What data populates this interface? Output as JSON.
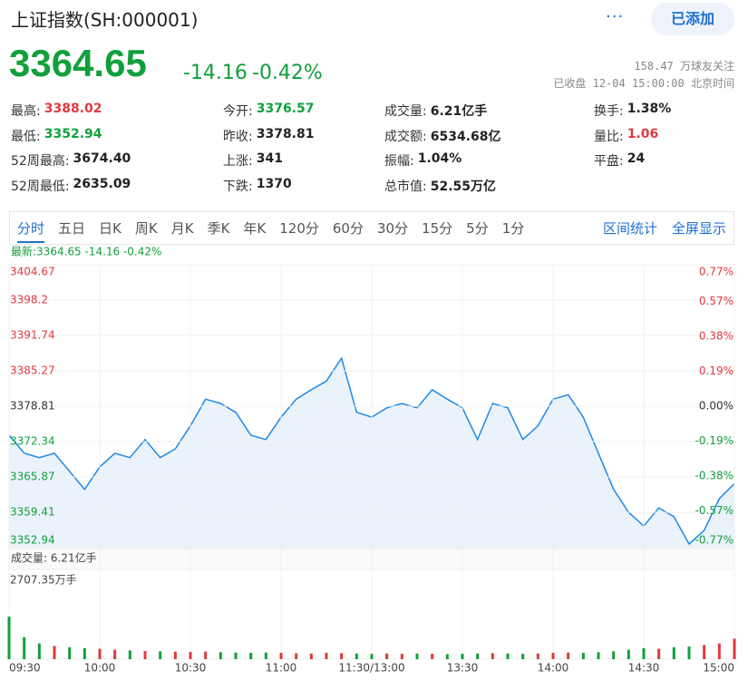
{
  "header": {
    "title": "上证指数(SH:000001)",
    "button": "已添加",
    "price": "3364.65",
    "change": "-14.16",
    "change_pct": "-0.42%",
    "followers": "158.47 万球友关注",
    "status": "已收盘 12-04 15:00:00 北京时间"
  },
  "stats": [
    [
      {
        "label": "最高:",
        "value": "3388.02",
        "color": "#e0393e"
      },
      {
        "label": "今开:",
        "value": "3376.57",
        "color": "#11a03c"
      },
      {
        "label": "成交量:",
        "value": "6.21亿手"
      },
      {
        "label": "换手:",
        "value": "1.38%"
      }
    ],
    [
      {
        "label": "最低:",
        "value": "3352.94",
        "color": "#11a03c"
      },
      {
        "label": "昨收:",
        "value": "3378.81"
      },
      {
        "label": "成交额:",
        "value": "6534.68亿"
      },
      {
        "label": "量比:",
        "value": "1.06",
        "color": "#e0393e"
      }
    ],
    [
      {
        "label": "52周最高:",
        "value": "3674.40"
      },
      {
        "label": "上涨:",
        "value": "341"
      },
      {
        "label": "振幅:",
        "value": "1.04%"
      },
      {
        "label": "平盘:",
        "value": "24"
      }
    ],
    [
      {
        "label": "52周最低:",
        "value": "2635.09"
      },
      {
        "label": "下跌:",
        "value": "1370"
      },
      {
        "label": "总市值:",
        "value": "52.55万亿"
      }
    ]
  ],
  "tabs": {
    "items": [
      "分时",
      "五日",
      "日K",
      "周K",
      "月K",
      "季K",
      "年K",
      "120分",
      "60分",
      "30分",
      "15分",
      "5分",
      "1分"
    ],
    "active": 0,
    "right": [
      "区间统计",
      "全屏显示"
    ]
  },
  "chart_data": [
    {
      "type": "line",
      "latest": "最新:3364.65 -14.16 -0.42%",
      "color": "#1e88e5",
      "fill": "#eaf3fc",
      "x": [
        0,
        5,
        10,
        15,
        20,
        25,
        30,
        35,
        40,
        45,
        50,
        55,
        60,
        65,
        70,
        75,
        80,
        85,
        90,
        95,
        100,
        105,
        110,
        115,
        120,
        125,
        130,
        135,
        140,
        145,
        150,
        155,
        160,
        165,
        170,
        175,
        180,
        185,
        190,
        195,
        200,
        205,
        210,
        215,
        220,
        225,
        230,
        235,
        240
      ],
      "values": [
        3373.5,
        3370.2,
        3369.4,
        3370.2,
        3366.9,
        3363.6,
        3367.7,
        3370.2,
        3369.4,
        3372.7,
        3369.4,
        3371.0,
        3375.2,
        3380.1,
        3379.3,
        3377.7,
        3373.5,
        3372.7,
        3376.8,
        3380.1,
        3381.8,
        3383.4,
        3387.6,
        3377.7,
        3376.8,
        3378.5,
        3379.3,
        3378.5,
        3381.8,
        3380.1,
        3378.5,
        3372.7,
        3379.3,
        3378.5,
        3372.7,
        3375.2,
        3380.1,
        3380.9,
        3376.8,
        3370.2,
        3363.6,
        3359.4,
        3356.9,
        3360.2,
        3358.6,
        3353.6,
        3356.1,
        3361.9,
        3364.65
      ],
      "xlim": [
        0,
        240
      ],
      "ylim": [
        3352.94,
        3404.67
      ],
      "yticks": [
        3404.67,
        3398.2,
        3391.74,
        3385.27,
        3378.81,
        3372.34,
        3365.87,
        3359.41,
        3352.94
      ],
      "y2lim": [
        -0.77,
        0.77
      ],
      "y2ticks": [
        {
          "value": 0.77,
          "label": "0.77%"
        },
        {
          "value": 0.57,
          "label": "0.57%"
        },
        {
          "value": 0.38,
          "label": "0.38%"
        },
        {
          "value": 0.19,
          "label": "0.19%"
        },
        {
          "value": 0,
          "label": "0.00%"
        },
        {
          "value": -0.19,
          "label": "-0.19%"
        },
        {
          "value": -0.38,
          "label": "-0.38%"
        },
        {
          "value": -0.57,
          "label": "-0.57%"
        },
        {
          "value": -0.77,
          "label": "-0.77%"
        }
      ],
      "base": 3378.81,
      "up_color": "#e0393e",
      "down_color": "#11a03c",
      "grid": true
    },
    {
      "type": "bar",
      "title": "成交量: 6.21亿手",
      "up_color": "#e0393e",
      "down_color": "#11a03c",
      "x": [
        0,
        5,
        10,
        15,
        20,
        25,
        30,
        35,
        40,
        45,
        50,
        55,
        60,
        65,
        70,
        75,
        80,
        85,
        90,
        95,
        100,
        105,
        110,
        115,
        120,
        125,
        130,
        135,
        140,
        145,
        150,
        155,
        160,
        165,
        170,
        175,
        180,
        185,
        190,
        195,
        200,
        205,
        210,
        215,
        220,
        225,
        230,
        235,
        240
      ],
      "values": [
        1350,
        700,
        500,
        420,
        380,
        350,
        330,
        300,
        280,
        260,
        250,
        240,
        230,
        240,
        220,
        210,
        200,
        210,
        200,
        190,
        180,
        200,
        190,
        180,
        170,
        180,
        170,
        180,
        170,
        160,
        170,
        180,
        190,
        180,
        170,
        180,
        200,
        210,
        200,
        220,
        250,
        300,
        350,
        330,
        380,
        400,
        450,
        500,
        650
      ],
      "xlim": [
        0,
        240
      ],
      "ylim": [
        0,
        2707.35
      ],
      "yticks": [
        {
          "value": 2707.35,
          "label": "2707.35万手"
        }
      ],
      "xticks": [
        {
          "value": 0,
          "label": "09:30"
        },
        {
          "value": 30,
          "label": "10:00"
        },
        {
          "value": 60,
          "label": "10:30"
        },
        {
          "value": 90,
          "label": "11:00"
        },
        {
          "value": 120,
          "label": "11:30/13:00"
        },
        {
          "value": 150,
          "label": "13:30"
        },
        {
          "value": 180,
          "label": "14:00"
        },
        {
          "value": 210,
          "label": "14:30"
        },
        {
          "value": 240,
          "label": "15:00"
        }
      ]
    }
  ]
}
